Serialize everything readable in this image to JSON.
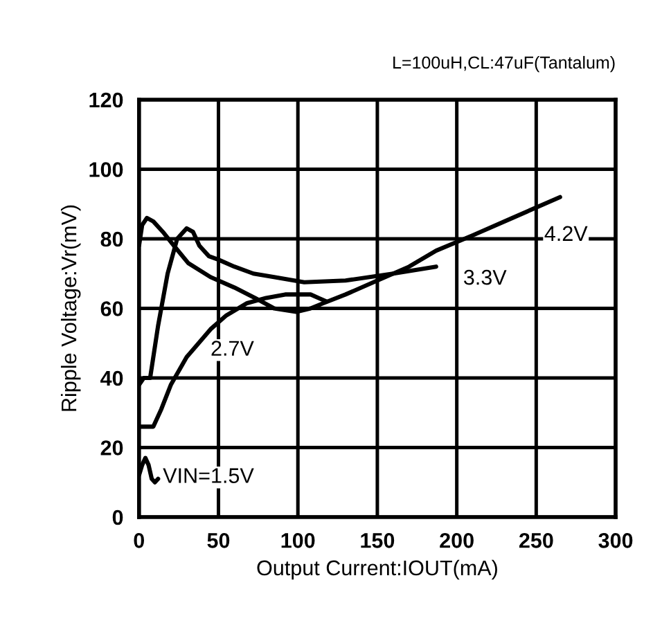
{
  "chart_data": {
    "type": "line",
    "subtitle": "L=100uH,CL:47uF(Tantalum)",
    "xlabel": "Output Current:IOUT(mA)",
    "ylabel": "Ripple Voltage:Vr(mV)",
    "xlim": [
      0,
      300
    ],
    "xticks": [
      0,
      50,
      100,
      150,
      200,
      250,
      300
    ],
    "ylim": [
      0,
      120
    ],
    "yticks": [
      0,
      20,
      40,
      60,
      80,
      100,
      120
    ],
    "grid": true,
    "legend": false,
    "line_style": "solid",
    "marker": "none",
    "series": [
      {
        "name": "4.2V",
        "color": "#000000",
        "x": [
          0,
          2,
          5,
          9,
          15,
          22,
          31,
          45,
          60,
          73,
          85,
          99,
          108,
          116,
          130,
          150,
          170,
          187,
          210,
          235,
          265
        ],
        "values": [
          78,
          84,
          86,
          85,
          82,
          78,
          73,
          69,
          66,
          63,
          60,
          59,
          60,
          61.5,
          64,
          68,
          72,
          76.6,
          81,
          86,
          92
        ]
      },
      {
        "name": "3.3V",
        "color": "#000000",
        "x": [
          0,
          3,
          7,
          12,
          18,
          24,
          30,
          34,
          38,
          44,
          50,
          60,
          72,
          85,
          104,
          130,
          160,
          187
        ],
        "values": [
          38,
          40,
          40,
          55,
          70,
          80,
          83,
          82,
          78,
          75,
          74,
          72,
          70,
          69,
          67.5,
          68,
          70,
          72
        ]
      },
      {
        "name": "2.7V",
        "color": "#000000",
        "x": [
          0,
          5,
          9,
          14,
          20,
          30,
          45,
          55,
          68,
          80,
          92,
          102,
          108,
          113,
          118
        ],
        "values": [
          26,
          26,
          26,
          31,
          38,
          46,
          54,
          58,
          61.5,
          63,
          64,
          64,
          64,
          63,
          62
        ]
      },
      {
        "name": "VIN=1.5V",
        "color": "#000000",
        "x": [
          0,
          2,
          4,
          6,
          8,
          10,
          12
        ],
        "values": [
          12,
          15,
          17,
          15,
          11,
          10,
          11
        ]
      }
    ]
  }
}
